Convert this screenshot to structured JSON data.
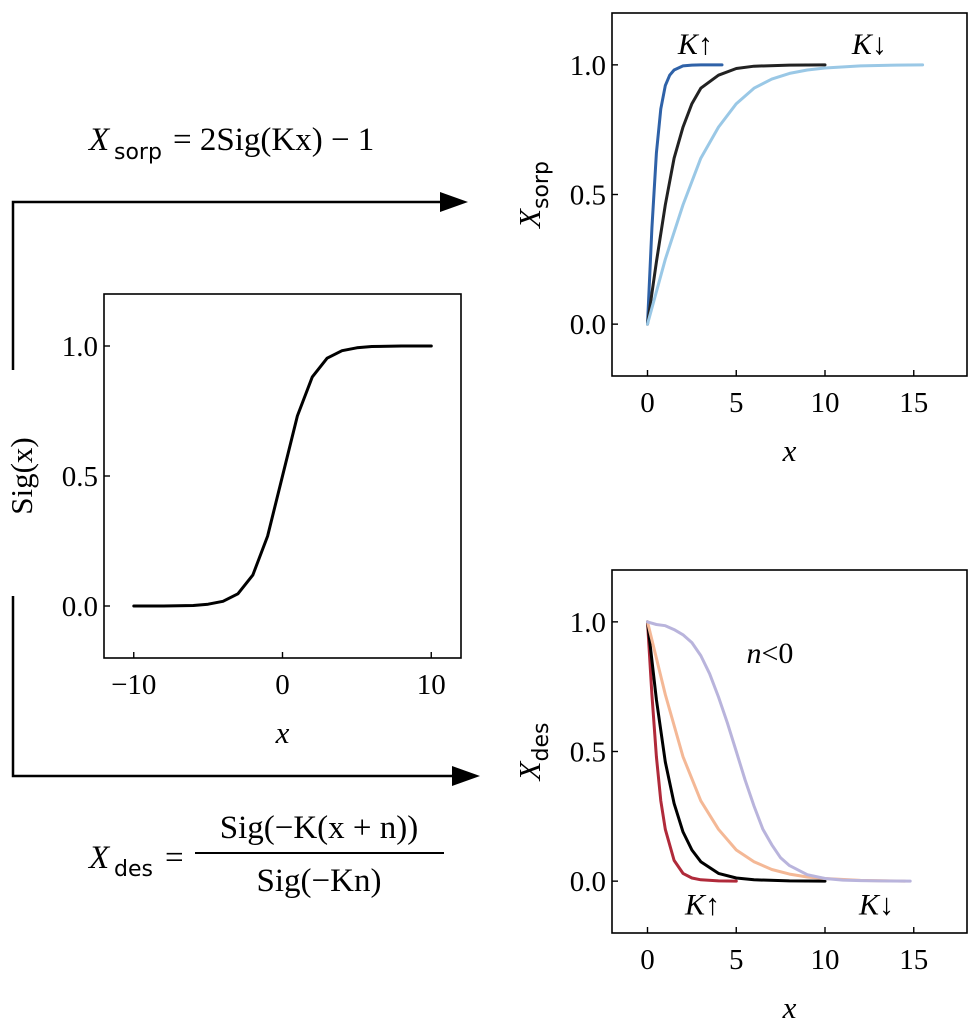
{
  "formulas": {
    "sorp": {
      "lhs": "X",
      "lhs_sub": "sorp",
      "rhs": "= 2Sig(Kx) − 1"
    },
    "des": {
      "lhs": "X",
      "lhs_sub": "des",
      "numerator": "Sig(−K(x + n))",
      "denominator": "Sig(−Kn)"
    }
  },
  "chart_data": [
    {
      "id": "sigmoid",
      "type": "line",
      "xlabel": "x",
      "ylabel": "Sig(x)",
      "xlim": [
        -12,
        12
      ],
      "ylim": [
        -0.2,
        1.2
      ],
      "xticks": [
        -10,
        0,
        10
      ],
      "xtick_labels": [
        "−10",
        "0",
        "10"
      ],
      "yticks": [
        0.0,
        0.5,
        1.0
      ],
      "ytick_labels": [
        "0.0",
        "0.5",
        "1.0"
      ],
      "grid": false,
      "series": [
        {
          "color": "#000000",
          "x": [
            -10,
            -8,
            -6,
            -5,
            -4,
            -3,
            -2,
            -1,
            0,
            1,
            2,
            3,
            4,
            5,
            6,
            8,
            10
          ],
          "y": [
            0.0,
            0.0,
            0.002,
            0.007,
            0.018,
            0.047,
            0.119,
            0.269,
            0.5,
            0.731,
            0.881,
            0.953,
            0.982,
            0.993,
            0.998,
            1.0,
            1.0
          ]
        }
      ],
      "annotations": []
    },
    {
      "id": "sorption",
      "type": "line",
      "xlabel": "x",
      "ylabel": "X",
      "ylabel_sub": "sorp",
      "xlim": [
        -2,
        18
      ],
      "ylim": [
        -0.2,
        1.2
      ],
      "xticks": [
        0,
        5,
        10,
        15
      ],
      "xtick_labels": [
        "0",
        "5",
        "10",
        "15"
      ],
      "yticks": [
        0.0,
        0.5,
        1.0
      ],
      "ytick_labels": [
        "0.0",
        "0.5",
        "1.0"
      ],
      "grid": false,
      "series": [
        {
          "color": "#2f62a8",
          "x": [
            0,
            0.25,
            0.5,
            0.75,
            1.0,
            1.25,
            1.5,
            2.0,
            2.5,
            3.0,
            4.2
          ],
          "y": [
            0.0,
            0.37,
            0.66,
            0.83,
            0.92,
            0.96,
            0.98,
            0.996,
            0.999,
            1.0,
            1.0
          ]
        },
        {
          "color": "#222222",
          "x": [
            0,
            0.5,
            1.0,
            1.5,
            2.0,
            2.5,
            3.0,
            4.0,
            5.0,
            6.0,
            8.0,
            10.0
          ],
          "y": [
            0.0,
            0.24,
            0.46,
            0.64,
            0.76,
            0.85,
            0.91,
            0.96,
            0.986,
            0.995,
            0.999,
            1.0
          ]
        },
        {
          "color": "#9ac8e6",
          "x": [
            0,
            1,
            2,
            3,
            4,
            5,
            6,
            7,
            8,
            9,
            10,
            12,
            14,
            15.5
          ],
          "y": [
            0.0,
            0.25,
            0.46,
            0.64,
            0.76,
            0.85,
            0.91,
            0.945,
            0.967,
            0.98,
            0.988,
            0.996,
            0.999,
            1.0
          ]
        }
      ],
      "annotations": [
        {
          "text": "K↑",
          "x": 2.7,
          "y": 1.08
        },
        {
          "text": "K↓",
          "x": 12.5,
          "y": 1.08
        }
      ]
    },
    {
      "id": "desorption",
      "type": "line",
      "xlabel": "x",
      "ylabel": "X",
      "ylabel_sub": "des",
      "xlim": [
        -2,
        18
      ],
      "ylim": [
        -0.2,
        1.2
      ],
      "xticks": [
        0,
        5,
        10,
        15
      ],
      "xtick_labels": [
        "0",
        "5",
        "10",
        "15"
      ],
      "yticks": [
        0.0,
        0.5,
        1.0
      ],
      "ytick_labels": [
        "0.0",
        "0.5",
        "1.0"
      ],
      "grid": false,
      "series": [
        {
          "color": "#b02a3a",
          "x": [
            0,
            0.25,
            0.5,
            0.75,
            1.0,
            1.5,
            2.0,
            2.5,
            3.0,
            4.0,
            5.0
          ],
          "y": [
            1.0,
            0.72,
            0.48,
            0.31,
            0.2,
            0.08,
            0.03,
            0.012,
            0.005,
            0.001,
            0.0
          ]
        },
        {
          "color": "#000000",
          "x": [
            0,
            0.5,
            1.0,
            1.5,
            2.0,
            2.5,
            3.0,
            4.0,
            5.0,
            6.0,
            8.0,
            10.0
          ],
          "y": [
            1.0,
            0.7,
            0.46,
            0.3,
            0.19,
            0.12,
            0.075,
            0.03,
            0.012,
            0.005,
            0.001,
            0.0
          ]
        },
        {
          "color": "#f4b896",
          "x": [
            0,
            1,
            2,
            3,
            4,
            5,
            6,
            7,
            8,
            9,
            10,
            12,
            14.5
          ],
          "y": [
            1.0,
            0.72,
            0.48,
            0.31,
            0.2,
            0.12,
            0.075,
            0.045,
            0.027,
            0.016,
            0.01,
            0.003,
            0.0
          ]
        },
        {
          "color": "#b9b4dc",
          "x": [
            0,
            0.5,
            1,
            1.5,
            2,
            2.5,
            3,
            3.5,
            4,
            4.5,
            5,
            5.5,
            6,
            6.5,
            7,
            7.5,
            8,
            9,
            10,
            11,
            12,
            13,
            14.8
          ],
          "y": [
            1.0,
            0.99,
            0.985,
            0.97,
            0.95,
            0.92,
            0.87,
            0.8,
            0.71,
            0.61,
            0.5,
            0.39,
            0.29,
            0.2,
            0.14,
            0.09,
            0.06,
            0.025,
            0.01,
            0.004,
            0.002,
            0.001,
            0.0
          ]
        }
      ],
      "annotations": [
        {
          "text": "n<0",
          "x": 6.9,
          "y": 0.88
        },
        {
          "text": "K↑",
          "x": 3.1,
          "y": -0.09
        },
        {
          "text": "K↓",
          "x": 12.9,
          "y": -0.09
        }
      ]
    }
  ]
}
